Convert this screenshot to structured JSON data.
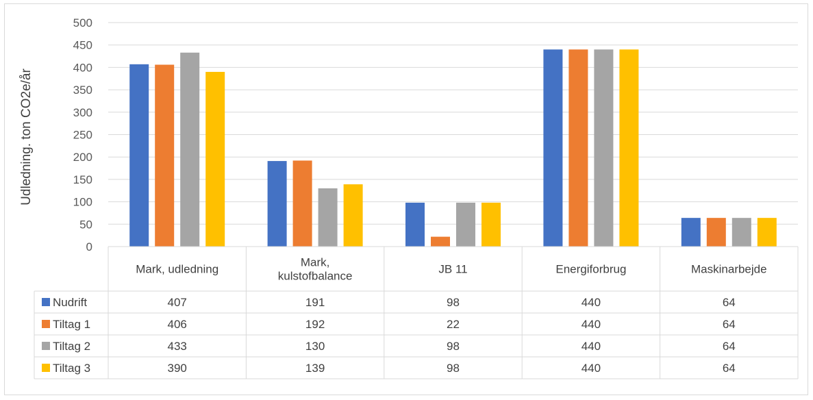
{
  "chart_data": {
    "type": "bar",
    "ylabel": "Udledning. ton CO2e/år",
    "ylim": [
      0,
      500
    ],
    "ytick_step": 50,
    "ytick_labels": [
      "0",
      "50",
      "100",
      "150",
      "200",
      "250",
      "300",
      "350",
      "400",
      "450",
      "500"
    ],
    "grid": true,
    "legend": "data-table",
    "categories": [
      [
        "Mark, udledning"
      ],
      [
        "Mark,",
        "kulstofbalance"
      ],
      [
        "JB 11"
      ],
      [
        "Energiforbrug"
      ],
      [
        "Maskinarbejde"
      ]
    ],
    "series": [
      {
        "name": "Nudrift",
        "color": "#4472C4",
        "values": [
          407,
          191,
          98,
          440,
          64
        ]
      },
      {
        "name": "Tiltag 1",
        "color": "#ED7D31",
        "values": [
          406,
          192,
          22,
          440,
          64
        ]
      },
      {
        "name": "Tiltag 2",
        "color": "#A5A5A5",
        "values": [
          433,
          130,
          98,
          440,
          64
        ]
      },
      {
        "name": "Tiltag 3",
        "color": "#FFC000",
        "values": [
          390,
          139,
          98,
          440,
          64
        ]
      }
    ]
  }
}
